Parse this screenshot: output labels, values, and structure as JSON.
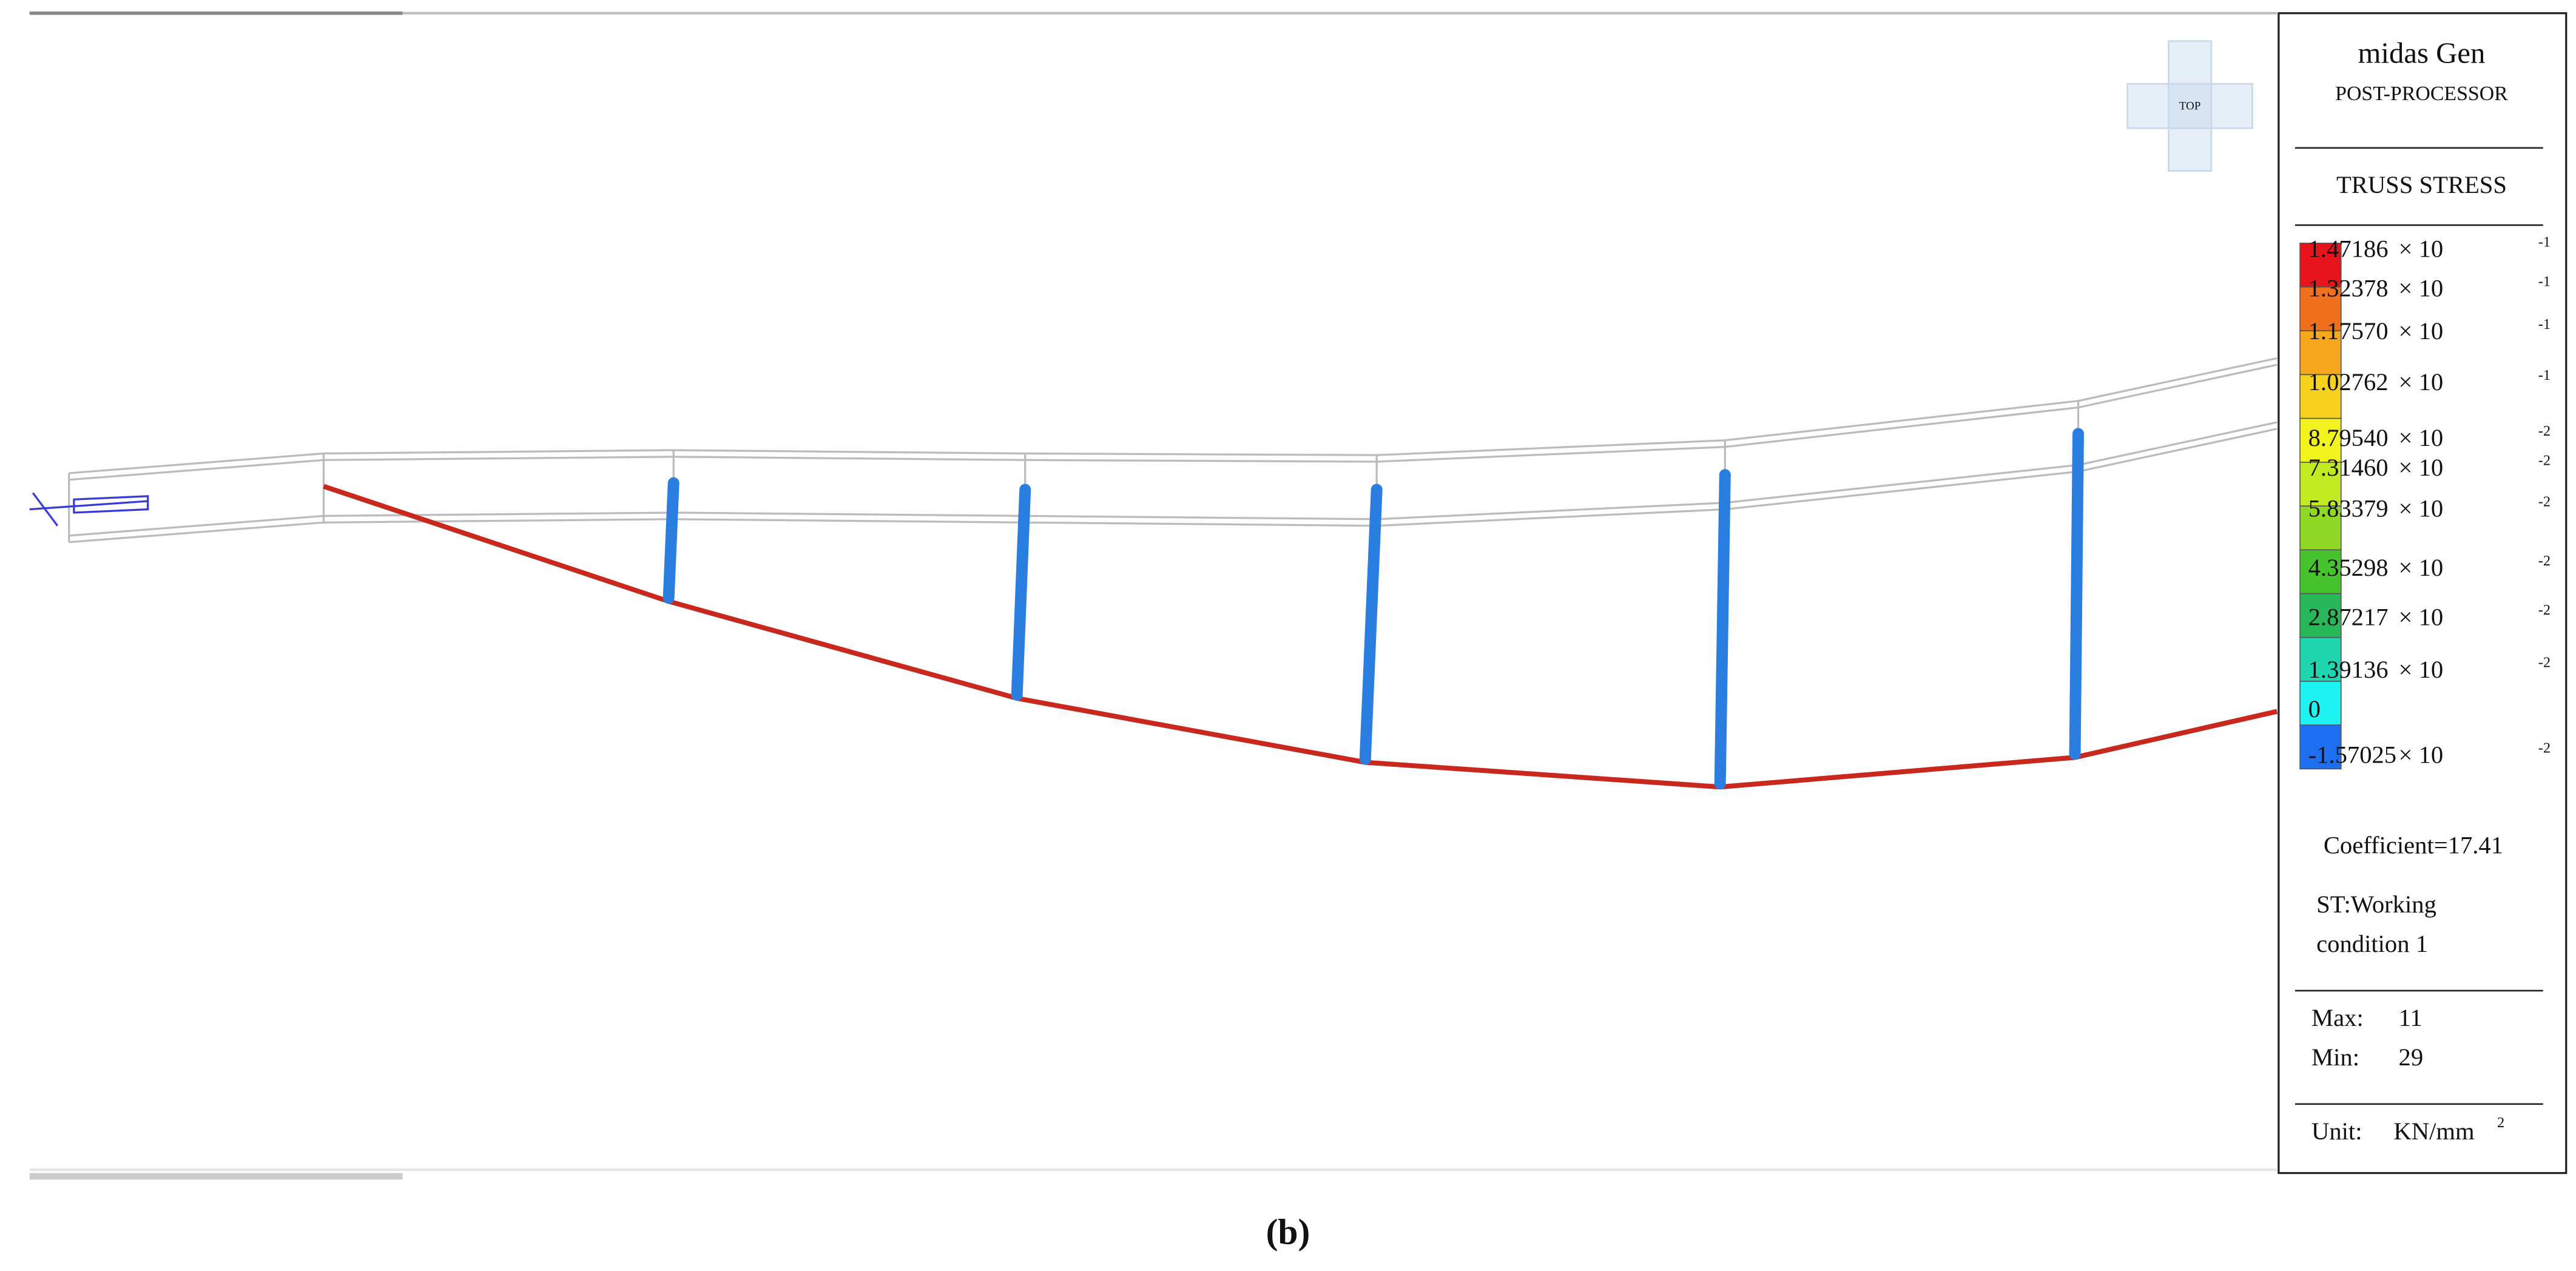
{
  "viewcube": {
    "label": "TOP"
  },
  "legend": {
    "title": "midas Gen",
    "subtitle": "POST-PROCESSOR",
    "quantity": "TRUSS STRESS",
    "times_ten": "× 10",
    "levels": [
      {
        "mantissa": "1.47186",
        "exponent": "-1",
        "color": "#e8141c"
      },
      {
        "mantissa": "1.32378",
        "exponent": "-1",
        "color": "#f0701e"
      },
      {
        "mantissa": "1.17570",
        "exponent": "-1",
        "color": "#f7a81c"
      },
      {
        "mantissa": "1.02762",
        "exponent": "-1",
        "color": "#f6d21e"
      },
      {
        "mantissa": "8.79540",
        "exponent": "-2",
        "color": "#f2f21c"
      },
      {
        "mantissa": "7.31460",
        "exponent": "-2",
        "color": "#c2ea22"
      },
      {
        "mantissa": "5.83379",
        "exponent": "-2",
        "color": "#8fd826"
      },
      {
        "mantissa": "4.35298",
        "exponent": "-2",
        "color": "#46c42e"
      },
      {
        "mantissa": "2.87217",
        "exponent": "-2",
        "color": "#27b85a"
      },
      {
        "mantissa": "1.39136",
        "exponent": "-2",
        "color": "#1ed7b0"
      },
      {
        "mantissa": "0",
        "exponent": null,
        "color": "#1ef2f2"
      },
      {
        "mantissa": "-1.57025",
        "exponent": "-2",
        "color": "#1e6ef0"
      }
    ],
    "coefficient": "Coefficient=17.41",
    "load_case": [
      "ST:Working",
      "condition 1"
    ],
    "max_label": "Max:",
    "max_value": "11",
    "min_label": "Min:",
    "min_value": "29",
    "unit_label": "Unit:",
    "unit": "KN/mm",
    "unit_exponent": "2"
  },
  "caption": "(b)"
}
